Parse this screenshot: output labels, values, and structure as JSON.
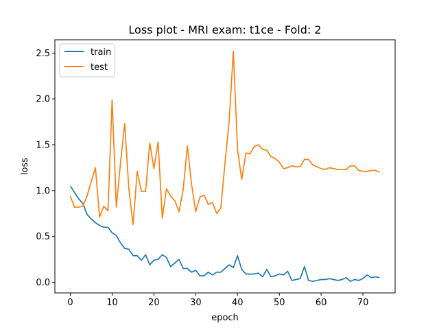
{
  "chart_data": {
    "type": "line",
    "title": "Loss plot - MRI exam: t1ce - Fold: 2",
    "xlabel": "epoch",
    "ylabel": "loss",
    "xlim": [
      -3.7,
      77.7
    ],
    "ylim": [
      -0.116,
      2.645
    ],
    "xticks": [
      0,
      10,
      20,
      30,
      40,
      50,
      60,
      70
    ],
    "yticks": [
      0.0,
      0.5,
      1.0,
      1.5,
      2.0,
      2.5
    ],
    "ytick_labels": [
      "0.0",
      "0.5",
      "1.0",
      "1.5",
      "2.0",
      "2.5"
    ],
    "grid": false,
    "legend_position": "upper-left",
    "x": [
      0,
      1,
      2,
      3,
      4,
      5,
      6,
      7,
      8,
      9,
      10,
      11,
      12,
      13,
      14,
      15,
      16,
      17,
      18,
      19,
      20,
      21,
      22,
      23,
      24,
      25,
      26,
      27,
      28,
      29,
      30,
      31,
      32,
      33,
      34,
      35,
      36,
      37,
      38,
      39,
      40,
      41,
      42,
      43,
      44,
      45,
      46,
      47,
      48,
      49,
      50,
      51,
      52,
      53,
      54,
      55,
      56,
      57,
      58,
      59,
      60,
      61,
      62,
      63,
      64,
      65,
      66,
      67,
      68,
      69,
      70,
      71,
      72,
      73,
      74
    ],
    "series": [
      {
        "name": "train",
        "color": "#1f77b4",
        "values": [
          1.05,
          0.98,
          0.91,
          0.86,
          0.74,
          0.69,
          0.65,
          0.62,
          0.6,
          0.6,
          0.54,
          0.51,
          0.43,
          0.37,
          0.36,
          0.29,
          0.29,
          0.24,
          0.3,
          0.19,
          0.24,
          0.25,
          0.3,
          0.27,
          0.17,
          0.21,
          0.25,
          0.15,
          0.15,
          0.11,
          0.13,
          0.07,
          0.07,
          0.11,
          0.08,
          0.11,
          0.11,
          0.15,
          0.19,
          0.16,
          0.29,
          0.14,
          0.09,
          0.09,
          0.09,
          0.1,
          0.06,
          0.14,
          0.06,
          0.07,
          0.09,
          0.08,
          0.12,
          0.02,
          0.03,
          0.04,
          0.17,
          0.02,
          0.01,
          0.02,
          0.03,
          0.03,
          0.04,
          0.03,
          0.02,
          0.03,
          0.05,
          0.01,
          0.03,
          0.02,
          0.04,
          0.08,
          0.05,
          0.06,
          0.05
        ]
      },
      {
        "name": "test",
        "color": "#ff7f0e",
        "values": [
          0.94,
          0.82,
          0.82,
          0.83,
          0.94,
          1.1,
          1.25,
          0.71,
          0.83,
          0.78,
          1.99,
          0.82,
          1.3,
          1.73,
          1.02,
          0.63,
          1.21,
          0.99,
          0.99,
          1.52,
          1.24,
          1.53,
          0.7,
          1.02,
          0.94,
          0.89,
          0.77,
          1.01,
          1.49,
          1.07,
          0.77,
          0.93,
          0.95,
          0.85,
          0.87,
          0.75,
          0.81,
          1.3,
          1.76,
          2.52,
          1.45,
          1.12,
          1.41,
          1.4,
          1.48,
          1.5,
          1.45,
          1.44,
          1.37,
          1.35,
          1.31,
          1.24,
          1.25,
          1.27,
          1.26,
          1.26,
          1.34,
          1.34,
          1.28,
          1.26,
          1.24,
          1.23,
          1.25,
          1.24,
          1.23,
          1.23,
          1.23,
          1.27,
          1.27,
          1.22,
          1.21,
          1.21,
          1.22,
          1.22,
          1.2
        ]
      }
    ]
  }
}
